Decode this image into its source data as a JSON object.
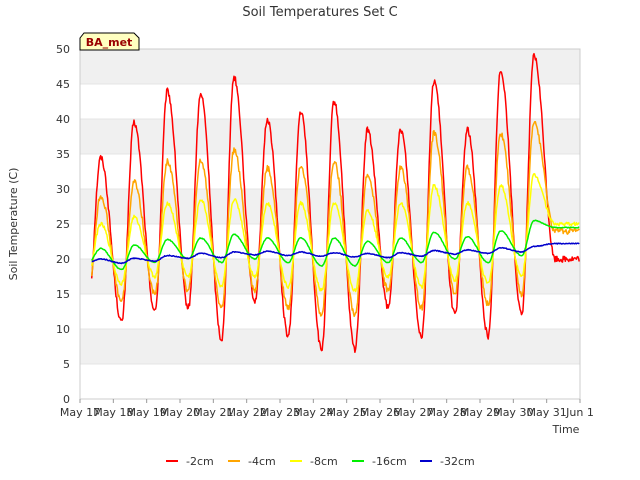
{
  "chart_data": {
    "type": "line",
    "title": "Soil Temperatures Set C",
    "xlabel": "Time",
    "ylabel": "Soil Temperature (C)",
    "station_badge": "BA_met",
    "x_tick_labels": [
      "May 17",
      "May 18",
      "May 19",
      "May 20",
      "May 21",
      "May 22",
      "May 23",
      "May 24",
      "May 25",
      "May 26",
      "May 27",
      "May 28",
      "May 29",
      "May 30",
      "May 31",
      "Jun 1"
    ],
    "xlim_days": [
      0,
      15
    ],
    "ylim": [
      0,
      50
    ],
    "y_ticks": [
      0,
      5,
      10,
      15,
      20,
      25,
      30,
      35,
      40,
      45,
      50
    ],
    "grid": "horizontal bands",
    "legend_position": "bottom",
    "sampling": "half-hourly, 2 values per day: [daily min, daily max] for May 17 - May 31",
    "series": [
      {
        "name": "-2cm",
        "color": "#ff0000",
        "values": [
          13.8,
          34.5,
          11.0,
          39.5,
          12.5,
          44.0,
          13.0,
          43.5,
          8.5,
          46.0,
          14.0,
          40.0,
          9.0,
          41.0,
          7.0,
          42.5,
          7.0,
          38.5,
          13.0,
          38.5,
          9.0,
          45.5,
          12.0,
          38.5,
          9.0,
          47.0,
          12.0,
          49.0,
          20.0,
          20.0
        ]
      },
      {
        "name": "-4cm",
        "color": "#ffa500",
        "values": [
          15.5,
          29.0,
          14.0,
          31.0,
          15.0,
          34.0,
          15.5,
          34.0,
          13.0,
          35.5,
          15.5,
          33.0,
          13.0,
          33.5,
          12.0,
          34.0,
          12.0,
          32.0,
          15.5,
          33.0,
          13.0,
          38.0,
          15.0,
          33.0,
          13.5,
          38.0,
          15.0,
          39.5,
          24.0,
          24.0
        ]
      },
      {
        "name": "-8cm",
        "color": "#ffff00",
        "values": [
          18.0,
          25.0,
          16.5,
          26.0,
          17.5,
          28.0,
          17.5,
          28.5,
          16.0,
          28.5,
          17.5,
          28.0,
          16.0,
          28.0,
          15.5,
          28.0,
          15.5,
          27.0,
          17.5,
          28.0,
          16.0,
          30.5,
          17.0,
          28.0,
          16.5,
          30.5,
          17.5,
          32.0,
          25.0,
          25.0
        ]
      },
      {
        "name": "-16cm",
        "color": "#00ee00",
        "values": [
          19.5,
          21.5,
          18.5,
          22.0,
          19.5,
          22.8,
          20.0,
          23.0,
          19.5,
          23.5,
          20.0,
          23.0,
          19.5,
          23.0,
          19.0,
          23.0,
          19.0,
          22.5,
          19.5,
          23.0,
          19.5,
          23.8,
          20.0,
          23.2,
          19.5,
          24.0,
          20.5,
          25.5,
          24.5,
          24.5
        ]
      },
      {
        "name": "-32cm",
        "color": "#0000cc",
        "values": [
          19.5,
          20.0,
          19.4,
          20.1,
          19.7,
          20.5,
          20.1,
          20.8,
          20.2,
          21.0,
          20.6,
          21.1,
          20.5,
          21.0,
          20.4,
          20.9,
          20.3,
          20.8,
          20.2,
          20.9,
          20.4,
          21.2,
          20.7,
          21.3,
          20.8,
          21.6,
          21.0,
          21.8,
          22.2,
          22.2
        ]
      }
    ]
  }
}
